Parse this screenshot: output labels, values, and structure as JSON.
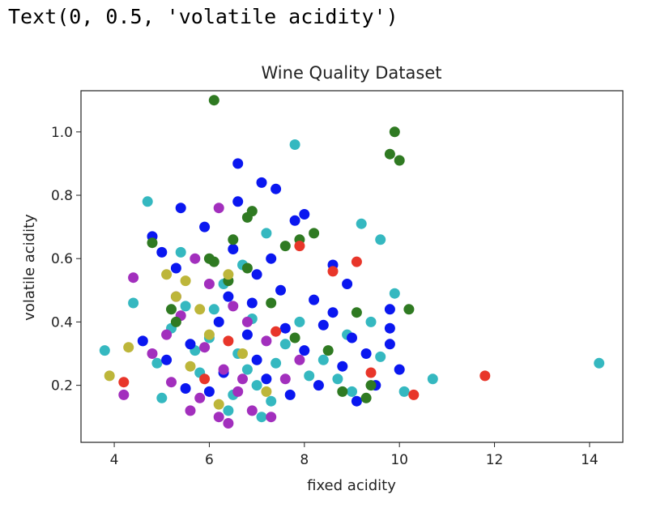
{
  "output_text": "Text(0, 0.5, 'volatile acidity')",
  "chart_data": {
    "type": "scatter",
    "title": "Wine Quality Dataset",
    "xlabel": "fixed acidity",
    "ylabel": "volatile acidity",
    "xlim": [
      3.3,
      14.7
    ],
    "ylim": [
      0.02,
      1.13
    ],
    "xticks": [
      4,
      6,
      8,
      10,
      12,
      14
    ],
    "yticks": [
      0.2,
      0.4,
      0.6,
      0.8,
      1.0
    ],
    "grid": false,
    "series": [
      {
        "color": "#35b8c0",
        "points": [
          [
            3.8,
            0.31
          ],
          [
            14.2,
            0.27
          ],
          [
            7.8,
            0.96
          ],
          [
            10.7,
            0.22
          ],
          [
            9.2,
            0.71
          ],
          [
            9.6,
            0.66
          ],
          [
            9.9,
            0.49
          ],
          [
            4.7,
            0.78
          ],
          [
            4.4,
            0.46
          ],
          [
            7.2,
            0.68
          ],
          [
            8.9,
            0.36
          ],
          [
            9.4,
            0.4
          ],
          [
            6.6,
            0.3
          ],
          [
            6.8,
            0.25
          ],
          [
            7.0,
            0.2
          ],
          [
            7.3,
            0.15
          ],
          [
            6.0,
            0.35
          ],
          [
            5.5,
            0.45
          ],
          [
            5.2,
            0.38
          ],
          [
            8.4,
            0.28
          ],
          [
            8.7,
            0.22
          ],
          [
            9.0,
            0.18
          ],
          [
            7.6,
            0.33
          ],
          [
            6.9,
            0.41
          ],
          [
            6.3,
            0.52
          ],
          [
            5.8,
            0.24
          ],
          [
            5.0,
            0.16
          ],
          [
            6.4,
            0.12
          ],
          [
            7.1,
            0.1
          ],
          [
            9.6,
            0.29
          ],
          [
            10.1,
            0.18
          ],
          [
            6.7,
            0.58
          ],
          [
            5.4,
            0.62
          ],
          [
            6.1,
            0.44
          ],
          [
            7.4,
            0.27
          ],
          [
            8.1,
            0.23
          ],
          [
            6.5,
            0.17
          ],
          [
            5.7,
            0.31
          ],
          [
            4.9,
            0.27
          ],
          [
            7.9,
            0.4
          ]
        ]
      },
      {
        "color": "#0a17f0",
        "points": [
          [
            6.6,
            0.9
          ],
          [
            7.1,
            0.84
          ],
          [
            7.4,
            0.82
          ],
          [
            6.6,
            0.78
          ],
          [
            8.0,
            0.74
          ],
          [
            7.8,
            0.72
          ],
          [
            4.8,
            0.67
          ],
          [
            10.0,
            0.25
          ],
          [
            9.8,
            0.44
          ],
          [
            9.8,
            0.38
          ],
          [
            9.8,
            0.33
          ],
          [
            5.0,
            0.62
          ],
          [
            5.3,
            0.57
          ],
          [
            5.4,
            0.76
          ],
          [
            5.9,
            0.7
          ],
          [
            6.5,
            0.63
          ],
          [
            7.0,
            0.55
          ],
          [
            7.5,
            0.5
          ],
          [
            8.2,
            0.47
          ],
          [
            8.6,
            0.43
          ],
          [
            9.0,
            0.35
          ],
          [
            9.3,
            0.3
          ],
          [
            8.8,
            0.26
          ],
          [
            8.3,
            0.2
          ],
          [
            7.7,
            0.17
          ],
          [
            7.2,
            0.22
          ],
          [
            6.8,
            0.36
          ],
          [
            6.2,
            0.4
          ],
          [
            5.6,
            0.33
          ],
          [
            5.1,
            0.28
          ],
          [
            4.6,
            0.34
          ],
          [
            6.0,
            0.18
          ],
          [
            6.9,
            0.46
          ],
          [
            7.6,
            0.38
          ],
          [
            8.0,
            0.31
          ],
          [
            8.4,
            0.39
          ],
          [
            7.3,
            0.6
          ],
          [
            6.4,
            0.48
          ],
          [
            9.1,
            0.15
          ],
          [
            8.9,
            0.52
          ],
          [
            7.0,
            0.28
          ],
          [
            6.3,
            0.24
          ],
          [
            5.5,
            0.19
          ],
          [
            8.6,
            0.58
          ],
          [
            9.5,
            0.2
          ]
        ]
      },
      {
        "color": "#a22fbd",
        "points": [
          [
            4.4,
            0.54
          ],
          [
            4.2,
            0.17
          ],
          [
            6.2,
            0.76
          ],
          [
            5.7,
            0.6
          ],
          [
            5.4,
            0.42
          ],
          [
            5.9,
            0.32
          ],
          [
            6.3,
            0.25
          ],
          [
            6.6,
            0.18
          ],
          [
            6.9,
            0.12
          ],
          [
            6.2,
            0.1
          ],
          [
            5.6,
            0.12
          ],
          [
            5.2,
            0.21
          ],
          [
            4.8,
            0.3
          ],
          [
            5.1,
            0.36
          ],
          [
            6.8,
            0.4
          ],
          [
            7.2,
            0.34
          ],
          [
            6.5,
            0.45
          ],
          [
            7.6,
            0.22
          ],
          [
            5.8,
            0.16
          ],
          [
            6.0,
            0.52
          ],
          [
            7.3,
            0.1
          ],
          [
            6.4,
            0.08
          ],
          [
            7.9,
            0.28
          ],
          [
            5.3,
            0.48
          ],
          [
            6.7,
            0.22
          ]
        ]
      },
      {
        "color": "#2f7a22",
        "points": [
          [
            6.1,
            1.1
          ],
          [
            9.9,
            1.0
          ],
          [
            9.8,
            0.93
          ],
          [
            10.0,
            0.91
          ],
          [
            6.8,
            0.73
          ],
          [
            6.9,
            0.75
          ],
          [
            8.2,
            0.68
          ],
          [
            7.9,
            0.66
          ],
          [
            7.6,
            0.64
          ],
          [
            4.8,
            0.65
          ],
          [
            6.1,
            0.59
          ],
          [
            6.4,
            0.53
          ],
          [
            7.8,
            0.35
          ],
          [
            9.1,
            0.43
          ],
          [
            10.2,
            0.44
          ],
          [
            9.4,
            0.2
          ],
          [
            8.5,
            0.31
          ],
          [
            5.2,
            0.44
          ],
          [
            5.3,
            0.4
          ],
          [
            6.0,
            0.6
          ],
          [
            6.8,
            0.57
          ],
          [
            7.3,
            0.46
          ],
          [
            8.8,
            0.18
          ],
          [
            9.3,
            0.16
          ],
          [
            6.5,
            0.66
          ]
        ]
      },
      {
        "color": "#bdb63a",
        "points": [
          [
            4.3,
            0.32
          ],
          [
            3.9,
            0.23
          ],
          [
            5.5,
            0.53
          ],
          [
            5.1,
            0.55
          ],
          [
            5.3,
            0.48
          ],
          [
            6.0,
            0.36
          ],
          [
            6.2,
            0.14
          ],
          [
            5.6,
            0.26
          ],
          [
            7.2,
            0.18
          ],
          [
            6.7,
            0.3
          ],
          [
            6.4,
            0.55
          ],
          [
            5.8,
            0.44
          ]
        ]
      },
      {
        "color": "#e8362a",
        "points": [
          [
            11.8,
            0.23
          ],
          [
            10.3,
            0.17
          ],
          [
            9.4,
            0.24
          ],
          [
            4.2,
            0.21
          ],
          [
            9.1,
            0.59
          ],
          [
            8.6,
            0.56
          ],
          [
            7.9,
            0.64
          ],
          [
            7.4,
            0.37
          ],
          [
            6.4,
            0.34
          ],
          [
            5.9,
            0.22
          ]
        ]
      }
    ]
  }
}
